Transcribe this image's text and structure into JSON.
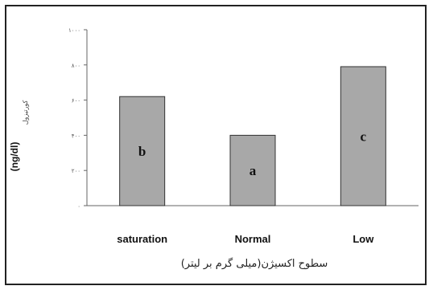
{
  "chart_data": {
    "type": "bar",
    "title": "",
    "xlabel": "سطوح اکسیژن(میلی گرم بر لیتر)",
    "ylabel": "(ng/dl)",
    "ylabel_secondary": "کورتیزول",
    "categories": [
      "saturation",
      "Normal",
      "Low"
    ],
    "values": [
      6.2,
      4.0,
      7.9
    ],
    "letters": [
      "b",
      "a",
      "c"
    ],
    "ylim": [
      0,
      10
    ],
    "yticks": [
      0,
      2,
      4,
      6,
      8,
      10
    ],
    "ytick_labels": [
      "۰",
      "۲۰۰",
      "۴۰۰",
      "۶۰۰",
      "۸۰۰",
      "۱۰۰۰"
    ],
    "grid": false,
    "legend": "none",
    "colors": {
      "bar_fill": "#a8a8a8",
      "bar_stroke": "#333333",
      "axis": "#666666"
    }
  }
}
